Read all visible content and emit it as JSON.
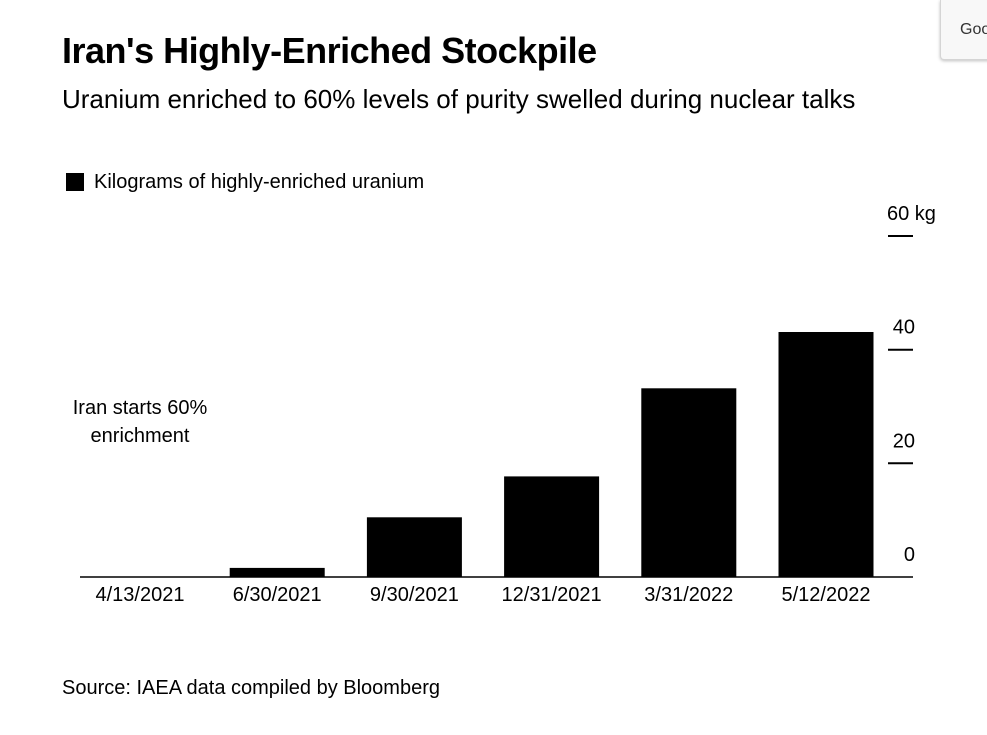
{
  "title": "Iran's Highly-Enriched Stockpile",
  "subtitle": "Uranium enriched to 60% levels of purity swelled during nuclear talks",
  "legend": {
    "label": "Kilograms of highly-enriched uranium",
    "color": "#000000"
  },
  "source": "Source: IAEA data compiled by Bloomberg",
  "corner_widget": {
    "label": "Goo"
  },
  "chart_data": {
    "type": "bar",
    "categories": [
      "4/13/2021",
      "6/30/2021",
      "9/30/2021",
      "12/31/2021",
      "3/31/2022",
      "5/12/2022"
    ],
    "series": [
      {
        "name": "Kilograms of highly-enriched uranium",
        "values": [
          0,
          1.6,
          10.5,
          17.7,
          33.2,
          43.1
        ],
        "color": "#000000"
      }
    ],
    "y_ticks": [
      {
        "value": 0,
        "label": "0"
      },
      {
        "value": 20,
        "label": "20"
      },
      {
        "value": 40,
        "label": "40"
      },
      {
        "value": 60,
        "label": "60 kg"
      }
    ],
    "ylim": [
      0,
      60
    ],
    "y_axis_position": "right",
    "grid": false,
    "legend_position": "top-left",
    "annotation": {
      "lines": [
        "Iran starts 60%",
        "enrichment"
      ],
      "category": "4/13/2021"
    }
  }
}
